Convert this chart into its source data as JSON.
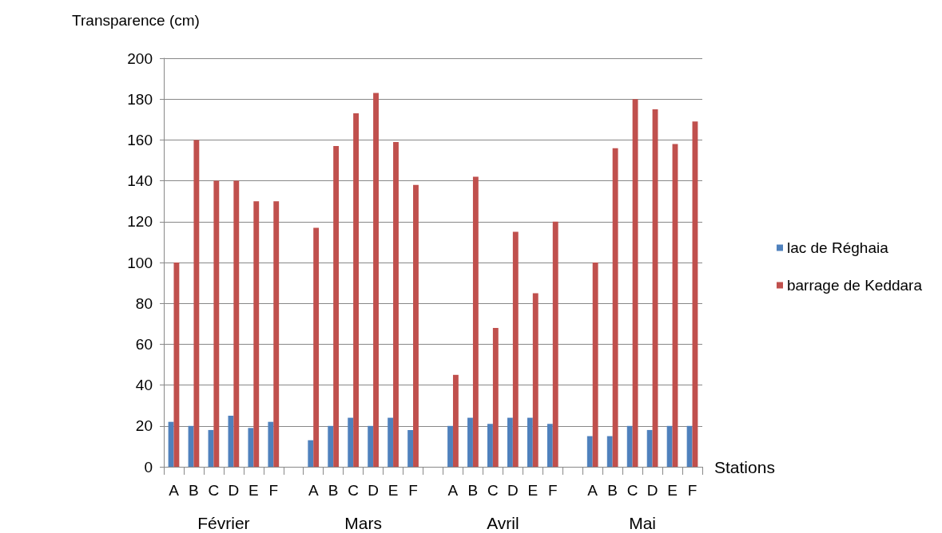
{
  "chart_data": {
    "type": "bar",
    "ylabel": "Transparence (cm)",
    "xlabel": "Stations",
    "categories": [
      "A",
      "B",
      "C",
      "D",
      "E",
      "F",
      null,
      "A",
      "B",
      "C",
      "D",
      "E",
      "F",
      null,
      "A",
      "B",
      "C",
      "D",
      "E",
      "F",
      null,
      "A",
      "B",
      "C",
      "D",
      "E",
      "F"
    ],
    "annotations": [
      "Février",
      "Mars",
      "Avril",
      "Mai"
    ],
    "series": [
      {
        "name": "lac de Réghaia",
        "color": "#4f81bd",
        "values": [
          22,
          20,
          18,
          25,
          19,
          22,
          null,
          13,
          20,
          24,
          20,
          24,
          18,
          null,
          20,
          24,
          21,
          24,
          24,
          21,
          null,
          15,
          15,
          20,
          18,
          20,
          20
        ]
      },
      {
        "name": "barrage de Keddara",
        "color": "#c0504d",
        "values": [
          100,
          160,
          140,
          140,
          130,
          130,
          null,
          117,
          157,
          173,
          183,
          159,
          138,
          null,
          45,
          142,
          68,
          115,
          85,
          120,
          null,
          100,
          156,
          180,
          175,
          158,
          169
        ]
      }
    ],
    "ylim": [
      0,
      200
    ],
    "yticks": [
      0,
      20,
      40,
      60,
      80,
      100,
      120,
      140,
      160,
      180,
      200
    ],
    "grid": "y",
    "legend": "right"
  }
}
